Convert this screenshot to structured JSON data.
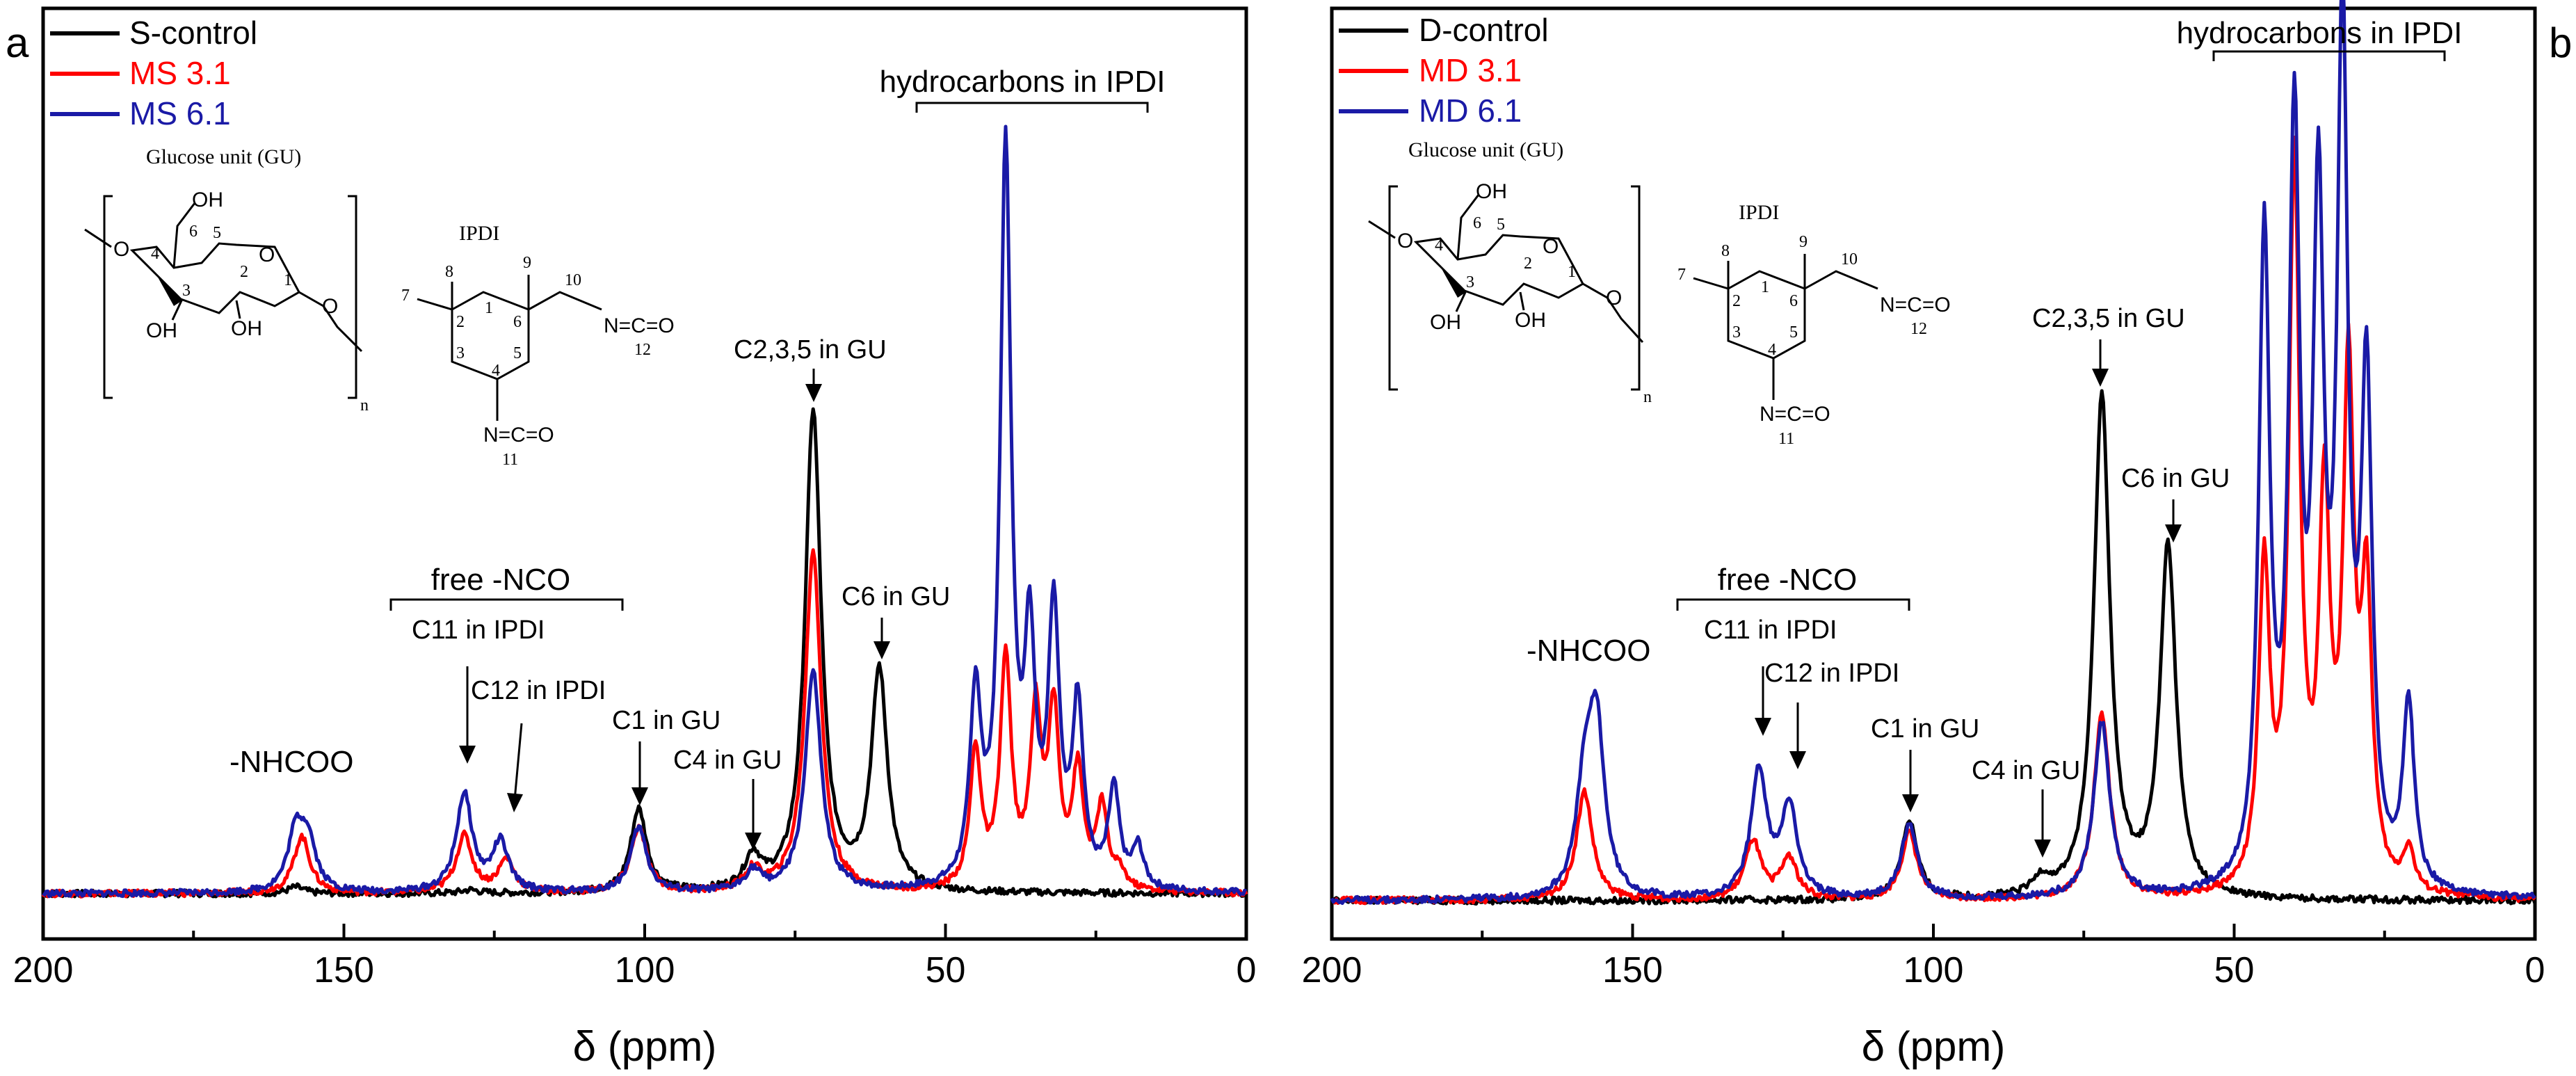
{
  "chart_data": [
    {
      "panel": "a",
      "type": "line",
      "xlabel": "δ (ppm)",
      "xlim": [
        200,
        0
      ],
      "xticks": [
        200,
        150,
        100,
        50,
        0
      ],
      "legend": [
        "S-control",
        "MS 3.1",
        "MS 6.1"
      ],
      "colors": [
        "#000000",
        "#ff0000",
        "#1a1aa6"
      ],
      "series": [
        {
          "name": "S-control",
          "peaks": [
            [
              158,
              0.008
            ],
            [
              129,
              0.004
            ],
            [
              101,
              0.103
            ],
            [
              82,
              0.04
            ],
            [
              72,
              0.59
            ],
            [
              61,
              0.27
            ]
          ],
          "baseline_ppm": [
            0,
            200
          ]
        },
        {
          "name": "MS 3.1",
          "peaks": [
            [
              157,
              0.07
            ],
            [
              130,
              0.07
            ],
            [
              123,
              0.04
            ],
            [
              101,
              0.08
            ],
            [
              82,
              0.025
            ],
            [
              72,
              0.42
            ],
            [
              45,
              0.17
            ],
            [
              40,
              0.28
            ],
            [
              35,
              0.21
            ],
            [
              32,
              0.21
            ],
            [
              28,
              0.14
            ],
            [
              24,
              0.1
            ],
            [
              21,
              0.02
            ]
          ],
          "baseline_ppm": [
            0,
            200
          ]
        },
        {
          "name": "MS 6.1",
          "peaks": [
            [
              158,
              0.07
            ],
            [
              156,
              0.06
            ],
            [
              130,
              0.12
            ],
            [
              124,
              0.06
            ],
            [
              101,
              0.08
            ],
            [
              82,
              0.025
            ],
            [
              72,
              0.27
            ],
            [
              45,
              0.23
            ],
            [
              40,
              0.9
            ],
            [
              36,
              0.28
            ],
            [
              32,
              0.33
            ],
            [
              28,
              0.22
            ],
            [
              22,
              0.12
            ],
            [
              18,
              0.05
            ]
          ],
          "baseline_ppm": [
            0,
            200
          ]
        }
      ],
      "annotations": {
        "hydrocarbons": "hydrocarbons in IPDI",
        "free_nco": "free -NCO",
        "c11": "C11 in IPDI",
        "c12": "C12 in IPDI",
        "c1": "C1 in GU",
        "c4": "C4 in GU",
        "c235": "C2,3,5 in GU",
        "c6": "C6 in GU",
        "nhcoo": "-NHCOO"
      }
    },
    {
      "panel": "b",
      "type": "line",
      "xlabel": "δ (ppm)",
      "xlim": [
        200,
        0
      ],
      "xticks": [
        200,
        150,
        100,
        50,
        0
      ],
      "legend": [
        "D-control",
        "MD 3.1",
        "MD 6.1"
      ],
      "colors": [
        "#000000",
        "#ff0000",
        "#1a1aa6"
      ],
      "series": [
        {
          "name": "D-control",
          "peaks": [
            [
              104,
              0.095
            ],
            [
              82,
              0.02
            ],
            [
              72,
              0.6
            ],
            [
              61,
              0.42
            ]
          ],
          "baseline_ppm": [
            0,
            200
          ]
        },
        {
          "name": "MD 3.1",
          "peaks": [
            [
              158,
              0.13
            ],
            [
              130,
              0.07
            ],
            [
              124,
              0.05
            ],
            [
              104,
              0.08
            ],
            [
              72,
              0.22
            ],
            [
              45,
              0.38
            ],
            [
              40,
              0.86
            ],
            [
              35,
              0.45
            ],
            [
              31,
              0.6
            ],
            [
              28,
              0.34
            ],
            [
              21,
              0.05
            ]
          ],
          "baseline_ppm": [
            0,
            200
          ]
        },
        {
          "name": "MD 6.1",
          "peaks": [
            [
              158,
              0.12
            ],
            [
              156,
              0.2
            ],
            [
              129,
              0.15
            ],
            [
              124,
              0.11
            ],
            [
              104,
              0.09
            ],
            [
              72,
              0.21
            ],
            [
              45,
              0.77
            ],
            [
              40,
              0.88
            ],
            [
              36,
              0.77
            ],
            [
              32,
              1.0
            ],
            [
              28,
              0.59
            ],
            [
              21,
              0.22
            ]
          ],
          "baseline_ppm": [
            0,
            200
          ]
        }
      ],
      "annotations": {
        "hydrocarbons": "hydrocarbons in IPDI",
        "free_nco": "free -NCO",
        "c11": "C11 in IPDI",
        "c12": "C12 in IPDI",
        "c1": "C1 in GU",
        "c4": "C4 in GU",
        "c235": "C2,3,5 in GU",
        "c6": "C6 in GU",
        "nhcoo": "-NHCOO"
      }
    }
  ],
  "structures": {
    "glucose_title": "Glucose unit (GU)",
    "ipdi_title": "IPDI",
    "oh": "OH",
    "o": "O",
    "n_sub": "n",
    "nco_11": "N=C=O",
    "nco_12": "N=C=O",
    "num": [
      "1",
      "2",
      "3",
      "4",
      "5",
      "6",
      "7",
      "8",
      "9",
      "10",
      "11",
      "12"
    ]
  }
}
